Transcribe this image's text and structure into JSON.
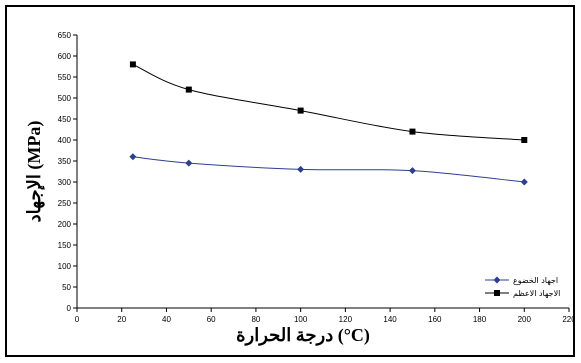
{
  "chart_data": {
    "type": "line",
    "title": "",
    "xlabel": "درجة الحرارة (°C)",
    "ylabel": "الإجهاد (MPa)",
    "xlim": [
      0,
      220
    ],
    "ylim": [
      0,
      650
    ],
    "xticks": [
      0,
      20,
      40,
      60,
      80,
      100,
      120,
      140,
      160,
      180,
      200,
      220
    ],
    "yticks": [
      0,
      50,
      100,
      150,
      200,
      250,
      300,
      350,
      400,
      450,
      500,
      550,
      600,
      650
    ],
    "grid": false,
    "legend_position": "bottom-right",
    "series": [
      {
        "name": "اجهاد الخضوع",
        "marker": "diamond",
        "color": "#2e3f8f",
        "x": [
          25,
          50,
          100,
          150,
          200
        ],
        "y": [
          360,
          345,
          330,
          327,
          300
        ]
      },
      {
        "name": "الاجهاد الاعظم",
        "marker": "square",
        "color": "#000000",
        "x": [
          25,
          50,
          100,
          150,
          200
        ],
        "y": [
          580,
          520,
          470,
          420,
          400
        ]
      }
    ]
  }
}
